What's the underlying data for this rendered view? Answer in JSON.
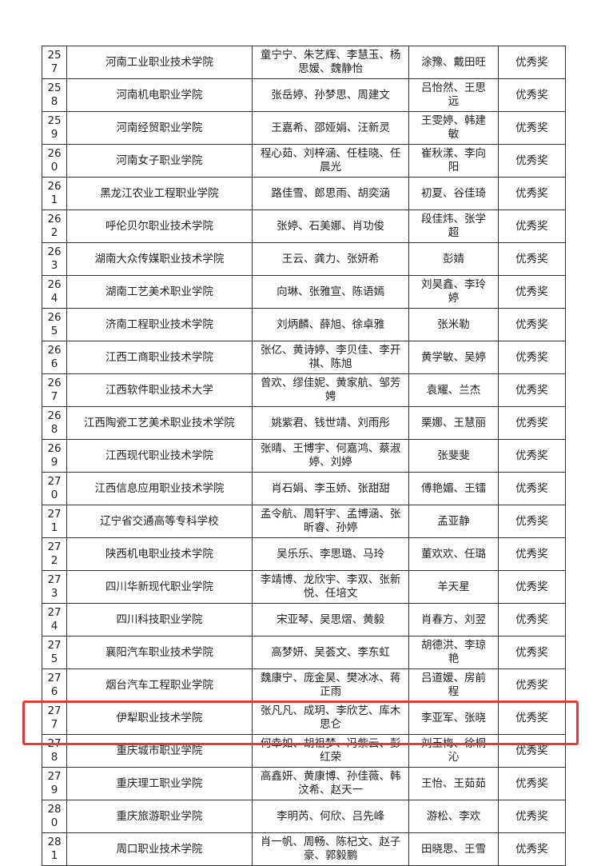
{
  "table": {
    "rows": [
      [
        "257",
        "河南工业职业技术学院",
        "童宁宁、朱艺辉、李慧玉、杨思媛、魏静怡",
        "涂豫、戴田旺",
        "优秀奖"
      ],
      [
        "258",
        "河南机电职业学院",
        "张岳婷、孙梦思、周建文",
        "吕怡然、王思远",
        "优秀奖"
      ],
      [
        "259",
        "河南经贸职业学院",
        "王嘉希、邵娅娟、汪新灵",
        "王雯婷、韩建敏",
        "优秀奖"
      ],
      [
        "260",
        "河南女子职业学院",
        "程心茹、刘梓涵、任桂晓、任晨光",
        "崔秋漾、李向阳",
        "优秀奖"
      ],
      [
        "261",
        "黑龙江农业工程职业学院",
        "路佳雪、郎思雨、胡奕涵",
        "初夏、谷佳琦",
        "优秀奖"
      ],
      [
        "262",
        "呼伦贝尔职业技术学院",
        "张婷、石美娜、肖功俊",
        "段佳炜、张学超",
        "优秀奖"
      ],
      [
        "263",
        "湖南大众传媒职业技术学院",
        "王云、龚力、张妍希",
        "彭婧",
        "优秀奖"
      ],
      [
        "264",
        "湖南工艺美术职业学院",
        "向琳、张雅宣、陈语嫣",
        "刘昊鑫、李玲婷",
        "优秀奖"
      ],
      [
        "265",
        "济南工程职业技术学院",
        "刘炳麟、薛旭、徐卓雅",
        "张米勒",
        "优秀奖"
      ],
      [
        "266",
        "江西工商职业技术学院",
        "张亿、黄诗婷、李贝佳、李开祺、陈旭",
        "黄学敏、吴婷",
        "优秀奖"
      ],
      [
        "267",
        "江西软件职业技术大学",
        "曾欢、缪佳妮、黄家航、邹芳娉",
        "袁耀、兰杰",
        "优秀奖"
      ],
      [
        "268",
        "江西陶瓷工艺美术职业技术学院",
        "姚紫君、钱世靖、刘雨彤",
        "栗娜、王慧丽",
        "优秀奖"
      ],
      [
        "269",
        "江西现代职业技术学院",
        "张晴、王博宇、何嘉鸿、蔡淑婷、刘婷",
        "张斐斐",
        "优秀奖"
      ],
      [
        "270",
        "江西信息应用职业技术学院",
        "肖石娟、李玉娇、张甜甜",
        "傅艳媚、王镭",
        "优秀奖"
      ],
      [
        "271",
        "辽宁省交通高等专科学校",
        "孟令航、周轩宇、孟博涵、张昕睿、孙婷",
        "孟亚静",
        "优秀奖"
      ],
      [
        "272",
        "陕西机电职业技术学院",
        "吴乐乐、李思璐、马玲",
        "董欢欢、任璐",
        "优秀奖"
      ],
      [
        "273",
        "四川华新现代职业学院",
        "李靖博、龙欣宇、李双、张新悦、任培文",
        "羊天星",
        "优秀奖"
      ],
      [
        "274",
        "四川科技职业学院",
        "宋亚琴、吴思熠、黄毅",
        "肖春方、刘翌",
        "优秀奖"
      ],
      [
        "275",
        "襄阳汽车职业技术学院",
        "高梦妍、吴荟文、李东虹",
        "胡德洪、李琼艳",
        "优秀奖"
      ],
      [
        "276",
        "烟台汽车工程职业学院",
        "魏康宁、庞金昊、樊冰冰、蒋正雨",
        "吕道媛、房前程",
        "优秀奖"
      ],
      [
        "277",
        "伊犁职业技术学院",
        "张凡凡、成玥、李欣艺、库木思仑",
        "李亚军、张晓",
        "优秀奖"
      ],
      [
        "278",
        "重庆城市职业学院",
        "何幸如、胡祖梦、冯紫云、彭红荣",
        "刘玉梅、徐桐沁",
        "优秀奖"
      ],
      [
        "279",
        "重庆理工职业学院",
        "高鑫妍、黄康博、孙佳薇、韩汶希、赵天一",
        "王怡、王茹茹",
        "优秀奖"
      ],
      [
        "280",
        "重庆旅游职业学院",
        "李明芮、何欣、吕先峰",
        "游松、李欢",
        "优秀奖"
      ],
      [
        "281",
        "周口职业技术学院",
        "肖一帆、周畅、陈杞文、赵子豪、郭毅鹏",
        "田晓思、王雪",
        "优秀奖"
      ]
    ]
  }
}
